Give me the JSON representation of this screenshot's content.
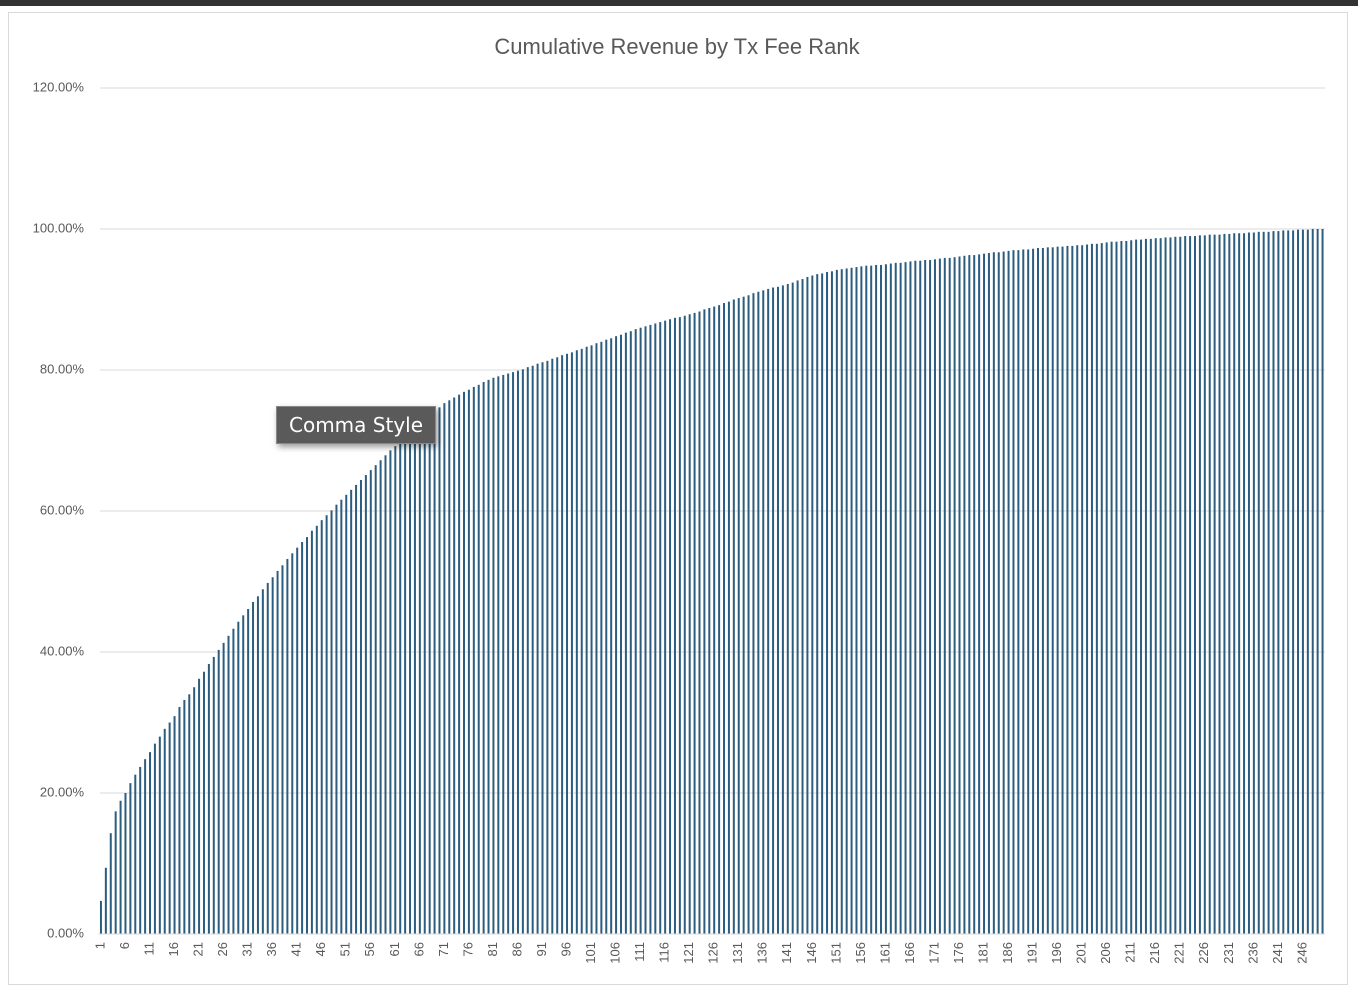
{
  "chart_data": {
    "type": "bar",
    "title": "Cumulative Revenue by Tx Fee Rank",
    "categories": [
      1,
      null,
      null,
      null,
      null,
      6,
      null,
      null,
      null,
      null,
      11,
      null,
      null,
      null,
      null,
      16,
      null,
      null,
      null,
      null,
      21,
      null,
      null,
      null,
      null,
      26,
      null,
      null,
      null,
      null,
      31,
      null,
      null,
      null,
      null,
      36,
      null,
      null,
      null,
      null,
      41,
      null,
      null,
      null,
      null,
      46,
      null,
      null,
      null,
      null,
      51,
      null,
      null,
      null,
      null,
      56,
      null,
      null,
      null,
      null,
      61,
      null,
      null,
      null,
      null,
      66,
      null,
      null,
      null,
      null,
      71,
      null,
      null,
      null,
      null,
      76,
      null,
      null,
      null,
      null,
      81,
      null,
      null,
      null,
      null,
      86,
      null,
      null,
      null,
      null,
      91,
      null,
      null,
      null,
      null,
      96,
      null,
      null,
      null,
      null,
      101,
      null,
      null,
      null,
      null,
      106,
      null,
      null,
      null,
      null,
      111,
      null,
      null,
      null,
      null,
      116,
      null,
      null,
      null,
      null,
      121,
      null,
      null,
      null,
      null,
      126,
      null,
      null,
      null,
      null,
      131,
      null,
      null,
      null,
      null,
      136,
      null,
      null,
      null,
      null,
      141,
      null,
      null,
      null,
      null,
      146,
      null,
      null,
      null,
      null,
      151,
      null,
      null,
      null,
      null,
      156,
      null,
      null,
      null,
      null,
      161,
      null,
      null,
      null,
      null,
      166,
      null,
      null,
      null,
      null,
      171,
      null,
      null,
      null,
      null,
      176,
      null,
      null,
      null,
      null,
      181,
      null,
      null,
      null,
      null,
      186,
      null,
      null,
      null,
      null,
      191,
      null,
      null,
      null,
      null,
      196,
      null,
      null,
      null,
      null,
      201,
      null,
      null,
      null,
      null,
      206,
      null,
      null,
      null,
      null,
      211,
      null,
      null,
      null,
      null,
      216,
      null,
      null,
      null,
      null,
      221,
      null,
      null,
      null,
      null,
      226,
      null,
      null,
      null,
      null,
      231,
      null,
      null,
      null,
      null,
      236,
      null,
      null,
      null,
      null,
      241,
      null,
      null,
      null,
      null,
      246,
      null,
      null,
      null,
      null
    ],
    "values": [
      4.7,
      9.4,
      14.3,
      17.4,
      18.9,
      20.0,
      21.4,
      22.6,
      23.7,
      24.8,
      25.8,
      27.0,
      28.0,
      29.1,
      30.0,
      30.9,
      32.2,
      33.2,
      34.0,
      35.0,
      36.2,
      37.2,
      38.3,
      39.3,
      40.3,
      41.3,
      42.3,
      43.3,
      44.3,
      45.2,
      46.1,
      47.1,
      47.9,
      48.9,
      49.8,
      50.6,
      51.5,
      52.3,
      53.2,
      54.0,
      54.8,
      55.6,
      56.3,
      57.2,
      57.9,
      58.7,
      59.4,
      60.1,
      60.9,
      61.6,
      62.3,
      63.0,
      63.7,
      64.4,
      65.1,
      65.8,
      66.5,
      67.2,
      67.9,
      68.6,
      69.2,
      69.8,
      70.4,
      71.1,
      71.7,
      72.3,
      72.9,
      73.5,
      74.1,
      74.7,
      75.3,
      75.7,
      76.1,
      76.5,
      76.9,
      77.2,
      77.6,
      77.9,
      78.3,
      78.6,
      78.9,
      79.1,
      79.3,
      79.5,
      79.7,
      79.9,
      80.1,
      80.4,
      80.6,
      80.9,
      81.1,
      81.3,
      81.6,
      81.8,
      82.1,
      82.3,
      82.5,
      82.8,
      83.0,
      83.3,
      83.5,
      83.8,
      84.0,
      84.3,
      84.5,
      84.8,
      85.0,
      85.3,
      85.5,
      85.8,
      86.0,
      86.2,
      86.4,
      86.6,
      86.8,
      87.0,
      87.2,
      87.4,
      87.5,
      87.7,
      87.9,
      88.1,
      88.3,
      88.6,
      88.8,
      89.0,
      89.2,
      89.5,
      89.7,
      90.0,
      90.2,
      90.4,
      90.6,
      90.9,
      91.1,
      91.3,
      91.5,
      91.7,
      91.8,
      92.0,
      92.2,
      92.4,
      92.7,
      92.9,
      93.2,
      93.4,
      93.6,
      93.7,
      93.9,
      94.0,
      94.2,
      94.3,
      94.4,
      94.5,
      94.6,
      94.7,
      94.8,
      94.8,
      94.9,
      94.9,
      95.0,
      95.1,
      95.2,
      95.2,
      95.3,
      95.4,
      95.5,
      95.5,
      95.6,
      95.6,
      95.7,
      95.8,
      95.9,
      95.9,
      96.0,
      96.1,
      96.2,
      96.3,
      96.3,
      96.4,
      96.5,
      96.6,
      96.7,
      96.7,
      96.8,
      96.9,
      97.0,
      97.0,
      97.1,
      97.1,
      97.2,
      97.3,
      97.3,
      97.4,
      97.4,
      97.5,
      97.5,
      97.6,
      97.6,
      97.7,
      97.7,
      97.8,
      97.9,
      97.9,
      98.0,
      98.1,
      98.2,
      98.2,
      98.3,
      98.3,
      98.4,
      98.5,
      98.5,
      98.6,
      98.6,
      98.7,
      98.7,
      98.8,
      98.8,
      98.9,
      98.9,
      99.0,
      99.0,
      99.0,
      99.1,
      99.1,
      99.2,
      99.2,
      99.2,
      99.3,
      99.3,
      99.4,
      99.4,
      99.4,
      99.5,
      99.5,
      99.6,
      99.6,
      99.6,
      99.7,
      99.7,
      99.8,
      99.8,
      99.8,
      99.9,
      99.9,
      99.9,
      100.0,
      100.0,
      100.0
    ],
    "color": "#2d5d7e",
    "ylim": [
      0,
      120
    ],
    "yticks": [
      {
        "value": 0,
        "label": "0.00%"
      },
      {
        "value": 20,
        "label": "20.00%"
      },
      {
        "value": 40,
        "label": "40.00%"
      },
      {
        "value": 60,
        "label": "60.00%"
      },
      {
        "value": 80,
        "label": "80.00%"
      },
      {
        "value": 100,
        "label": "100.00%"
      },
      {
        "value": 120,
        "label": "120.00%"
      }
    ],
    "grid": true
  },
  "tooltip": "Comma Style"
}
